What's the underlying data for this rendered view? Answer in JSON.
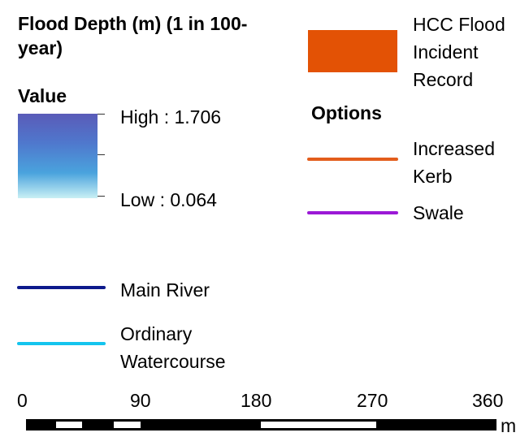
{
  "flood_depth": {
    "title": "Flood Depth (m) (1 in 100-year)",
    "value_heading": "Value",
    "high_label": "High : 1.706",
    "low_label": "Low : 0.064",
    "ramp_colors": [
      "#5a5bb8",
      "#4f78cd",
      "#4aa3dd",
      "#c9f0f4"
    ]
  },
  "hcc_flood_incident": {
    "label_lines": [
      "HCC Flood",
      "Incident",
      "Record"
    ],
    "color": "#e35205"
  },
  "options": {
    "heading": "Options",
    "items": [
      {
        "label_lines": [
          "Increased",
          "Kerb"
        ],
        "color": "#e35d1c"
      },
      {
        "label_lines": [
          "Swale"
        ],
        "color": "#9b19d6"
      }
    ]
  },
  "watercourses": {
    "items": [
      {
        "label_lines": [
          "Main River"
        ],
        "color": "#0d1a8c"
      },
      {
        "label_lines": [
          "Ordinary",
          "Watercourse"
        ],
        "color": "#14c4ee"
      }
    ]
  },
  "scale_bar": {
    "ticks": [
      "0",
      "90",
      "180",
      "270",
      "360"
    ],
    "unit": "m"
  }
}
